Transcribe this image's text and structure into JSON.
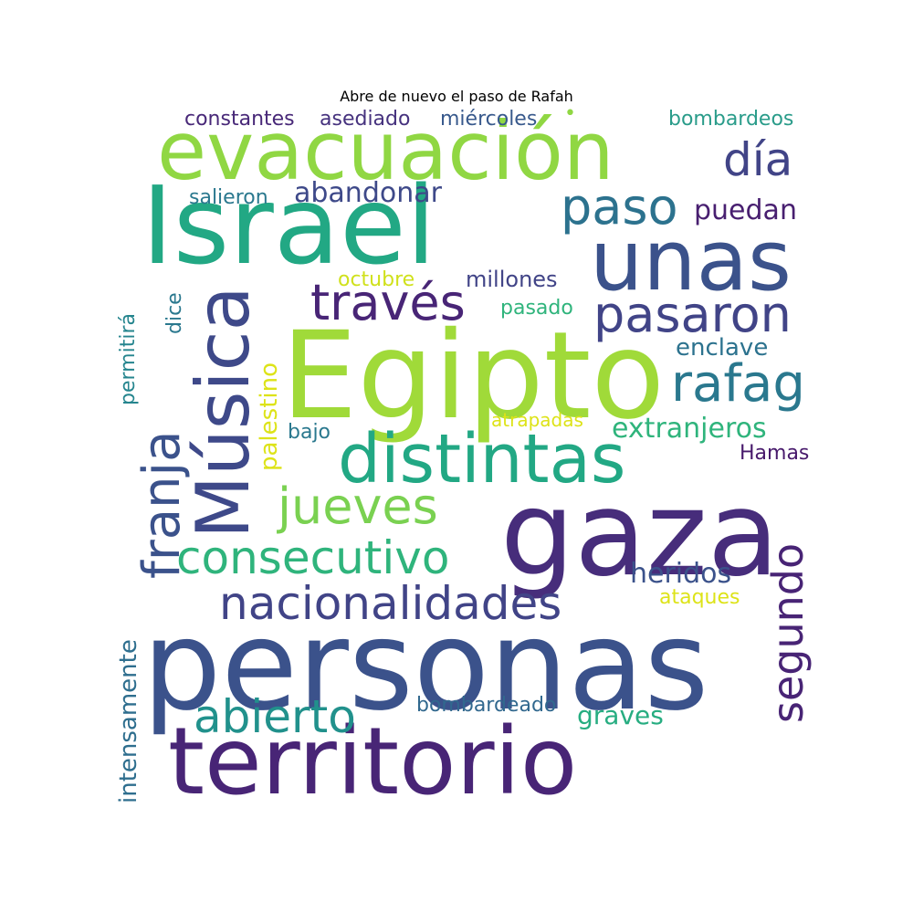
{
  "title": "Abre de nuevo el paso de Rafah",
  "words": {
    "evacuacion": {
      "text": "evacuación",
      "color": "#90d743"
    },
    "israel": {
      "text": "Israel",
      "color": "#22a884"
    },
    "unas": {
      "text": "unas",
      "color": "#3b528b"
    },
    "egipto": {
      "text": "Egipto",
      "color": "#a0da39"
    },
    "gaza": {
      "text": "gaza",
      "color": "#472d7b"
    },
    "personas": {
      "text": "personas",
      "color": "#3b528b"
    },
    "territorio": {
      "text": "territorio",
      "color": "#482576"
    },
    "distintas": {
      "text": "distintas",
      "color": "#22a884"
    },
    "nacionalidades": {
      "text": "nacionalidades",
      "color": "#414487"
    },
    "consecutivo": {
      "text": "consecutivo",
      "color": "#2fb47c"
    },
    "jueves": {
      "text": "jueves",
      "color": "#7ad151"
    },
    "abierto": {
      "text": "abierto",
      "color": "#21918c"
    },
    "traves": {
      "text": "través",
      "color": "#482576"
    },
    "pasaron": {
      "text": "pasaron",
      "color": "#414487"
    },
    "rafag": {
      "text": "rafag",
      "color": "#2a788e"
    },
    "paso": {
      "text": "paso",
      "color": "#2c728e"
    },
    "dia": {
      "text": "día",
      "color": "#414487"
    },
    "abandonar": {
      "text": "abandonar",
      "color": "#3e4989"
    },
    "puedan": {
      "text": "puedan",
      "color": "#481f70"
    },
    "extranjeros": {
      "text": "extranjeros",
      "color": "#2fb47c"
    },
    "heridos": {
      "text": "heridos",
      "color": "#3b528b"
    },
    "enclave": {
      "text": "enclave",
      "color": "#2c728e"
    },
    "graves": {
      "text": "graves",
      "color": "#27ad81"
    },
    "bombardeado": {
      "text": "bombardeado",
      "color": "#31688e"
    },
    "ataques": {
      "text": "ataques",
      "color": "#dde318"
    },
    "hamas": {
      "text": "Hamas",
      "color": "#481a6c"
    },
    "atrapadas": {
      "text": "atrapadas",
      "color": "#dde318"
    },
    "bajo": {
      "text": "bajo",
      "color": "#2a788e"
    },
    "pasado": {
      "text": "pasado",
      "color": "#2fb47c"
    },
    "millones": {
      "text": "millones",
      "color": "#414487"
    },
    "octubre": {
      "text": "octubre",
      "color": "#d0e11c"
    },
    "salieron": {
      "text": "salieron",
      "color": "#2a788e"
    },
    "constantes": {
      "text": "constantes",
      "color": "#482878"
    },
    "asediado": {
      "text": "asediado",
      "color": "#46327e"
    },
    "miercoles": {
      "text": "miércoles",
      "color": "#38598c"
    },
    "bombardeos": {
      "text": "bombardeos",
      "color": "#2a9c8a"
    },
    "dot": {
      "text": "•",
      "color": "#90d743"
    },
    "musica": {
      "text": "Música",
      "color": "#3e4989"
    },
    "franja": {
      "text": "franja",
      "color": "#3b528b"
    },
    "segundo": {
      "text": "segundo",
      "color": "#482475"
    },
    "palestino": {
      "text": "palestino",
      "color": "#dde318"
    },
    "permitira": {
      "text": "permitirá",
      "color": "#25858e"
    },
    "dice": {
      "text": "dice",
      "color": "#2a788e"
    },
    "intensamente": {
      "text": "intensamente",
      "color": "#2e6e8e"
    }
  }
}
